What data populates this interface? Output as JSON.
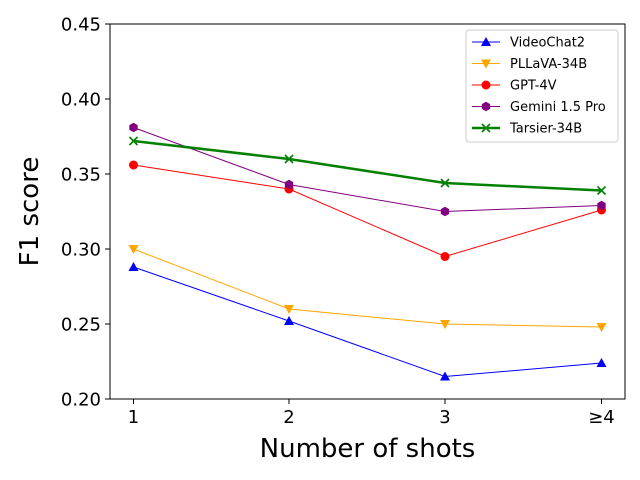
{
  "chart_data": {
    "type": "line",
    "xlabel": "Number of shots",
    "ylabel": "F1 score",
    "categories": [
      "1",
      "2",
      "3",
      "≥4"
    ],
    "ylim": [
      0.2,
      0.45
    ],
    "yticks": [
      "0.20",
      "0.25",
      "0.30",
      "0.35",
      "0.40",
      "0.45"
    ],
    "grid": false,
    "legend_position": "top-right",
    "series": [
      {
        "name": "VideoChat2",
        "color": "#0000ff",
        "marker": "triangle-up",
        "values": [
          0.288,
          0.252,
          0.215,
          0.224
        ],
        "width": 1
      },
      {
        "name": "PLLaVA-34B",
        "color": "#ffa500",
        "marker": "triangle-down",
        "values": [
          0.3,
          0.26,
          0.25,
          0.248
        ],
        "width": 1
      },
      {
        "name": "GPT-4V",
        "color": "#ff0000",
        "marker": "circle",
        "values": [
          0.356,
          0.34,
          0.295,
          0.326
        ],
        "width": 1
      },
      {
        "name": "Gemini 1.5 Pro",
        "color": "#800080",
        "marker": "hexagon",
        "values": [
          0.381,
          0.343,
          0.325,
          0.329
        ],
        "width": 1
      },
      {
        "name": "Tarsier-34B",
        "color": "#008000",
        "marker": "x",
        "values": [
          0.372,
          0.36,
          0.344,
          0.339
        ],
        "width": 2.5
      }
    ]
  }
}
